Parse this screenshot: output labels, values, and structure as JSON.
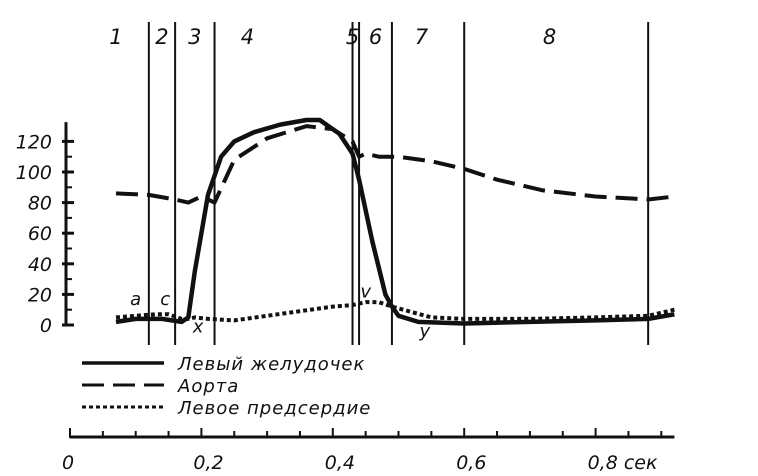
{
  "chart_data": {
    "type": "line",
    "title": "",
    "xlabel": "",
    "ylabel": "",
    "x_unit": "сек",
    "xlim": [
      0,
      0.9
    ],
    "ylim": [
      0,
      130
    ],
    "y_ticks": [
      0,
      20,
      40,
      60,
      80,
      100,
      120
    ],
    "y_tick_labels": [
      "0",
      "20",
      "40",
      "60",
      "80",
      "100",
      "120"
    ],
    "x_ticks": [
      0,
      0.2,
      0.4,
      0.6,
      0.8
    ],
    "x_tick_labels": [
      "0",
      "0,2",
      "0,4",
      "0,6",
      "0,8 сек"
    ],
    "phase_boundaries": [
      0.12,
      0.16,
      0.22,
      0.43,
      0.44,
      0.49,
      0.6,
      0.88
    ],
    "phase_labels": [
      {
        "text": "1",
        "x": 0.07
      },
      {
        "text": "2",
        "x": 0.14
      },
      {
        "text": "3",
        "x": 0.19
      },
      {
        "text": "4",
        "x": 0.27
      },
      {
        "text": "5",
        "x": 0.43
      },
      {
        "text": "6",
        "x": 0.465
      },
      {
        "text": "7",
        "x": 0.535
      },
      {
        "text": "8",
        "x": 0.73
      }
    ],
    "annotations": [
      {
        "text": "a",
        "x": 0.1,
        "y": 13
      },
      {
        "text": "c",
        "x": 0.145,
        "y": 13
      },
      {
        "text": "x",
        "x": 0.195,
        "y": -5
      },
      {
        "text": "v",
        "x": 0.45,
        "y": 18
      },
      {
        "text": "y",
        "x": 0.54,
        "y": -8
      }
    ],
    "legend_position": "bottom-left",
    "series": [
      {
        "name": "Левый желудочек",
        "style": "solid",
        "x": [
          0.07,
          0.1,
          0.14,
          0.17,
          0.18,
          0.19,
          0.21,
          0.23,
          0.25,
          0.28,
          0.32,
          0.36,
          0.38,
          0.41,
          0.43,
          0.44,
          0.46,
          0.48,
          0.49,
          0.5,
          0.53,
          0.6,
          0.7,
          0.8,
          0.88,
          0.92
        ],
        "y": [
          2,
          4,
          4,
          2,
          5,
          35,
          85,
          110,
          120,
          126,
          131,
          134,
          134,
          125,
          112,
          95,
          55,
          20,
          12,
          6,
          2,
          1,
          2,
          3,
          4,
          7
        ]
      },
      {
        "name": "Аорта",
        "style": "dashed",
        "x": [
          0.07,
          0.12,
          0.16,
          0.18,
          0.2,
          0.21,
          0.22,
          0.25,
          0.3,
          0.36,
          0.4,
          0.43,
          0.44,
          0.45,
          0.47,
          0.5,
          0.55,
          0.6,
          0.65,
          0.72,
          0.8,
          0.88,
          0.92
        ],
        "y": [
          86,
          85,
          82,
          80,
          84,
          82,
          80,
          108,
          122,
          130,
          128,
          120,
          110,
          112,
          110,
          110,
          107,
          102,
          95,
          88,
          84,
          82,
          84
        ]
      },
      {
        "name": "Левое предсердие",
        "style": "dotted",
        "x": [
          0.07,
          0.1,
          0.13,
          0.15,
          0.17,
          0.18,
          0.19,
          0.21,
          0.25,
          0.3,
          0.35,
          0.4,
          0.43,
          0.45,
          0.47,
          0.49,
          0.55,
          0.6,
          0.7,
          0.8,
          0.88,
          0.92
        ],
        "y": [
          5,
          6,
          7,
          7,
          4,
          4,
          5,
          4,
          3,
          6,
          9,
          12,
          13,
          15,
          15,
          12,
          5,
          4,
          4,
          5,
          6,
          10
        ]
      }
    ]
  }
}
